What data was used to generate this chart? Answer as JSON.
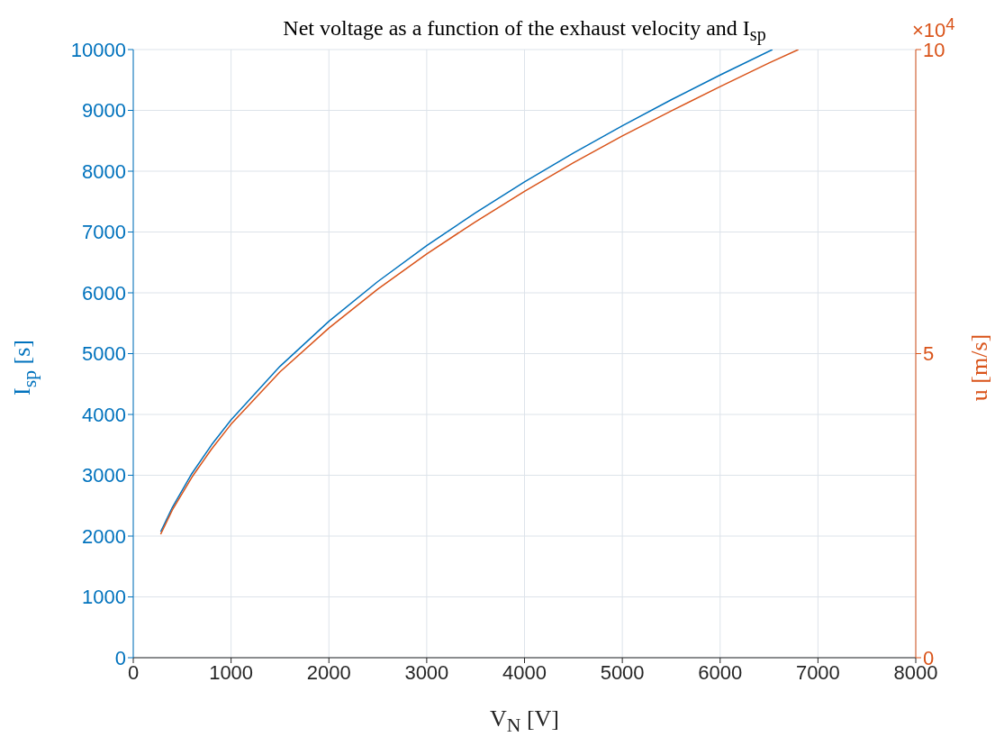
{
  "chart_data": {
    "type": "line",
    "title": "Net voltage as a function of the exhaust velocity and I$_{sp}$",
    "xlabel": "V$_{N}$ [V]",
    "ylabel": "I$_{sp}$ [s]",
    "y2label": "u [m/s]",
    "annotations": [
      "×10$^{4}$"
    ],
    "xlim": [
      0,
      8000
    ],
    "xticks": [
      0,
      1000,
      2000,
      3000,
      4000,
      5000,
      6000,
      7000,
      8000
    ],
    "ylim": [
      0,
      10000
    ],
    "yticks": [
      0,
      1000,
      2000,
      3000,
      4000,
      5000,
      6000,
      7000,
      8000,
      9000,
      10000
    ],
    "y2lim": [
      0,
      10
    ],
    "y2ticks": [
      0,
      5,
      10
    ],
    "grid": true,
    "series": [
      {
        "color": "#0072bd",
        "x": [
          280,
          400,
          600,
          800,
          1000,
          1500,
          2000,
          2500,
          3000,
          3500,
          4000,
          4500,
          5000,
          5500,
          6000,
          6535
        ],
        "values": [
          2070,
          2474,
          3030,
          3499,
          3912,
          4791,
          5532,
          6185,
          6775,
          7318,
          7823,
          8298,
          8747,
          9174,
          9582,
          10000
        ]
      },
      {
        "color": "#d95319",
        "axis": "y2",
        "x": [
          280,
          400,
          600,
          800,
          1000,
          1500,
          2000,
          2500,
          3000,
          3500,
          4000,
          4500,
          5000,
          5500,
          6000,
          6500,
          6800
        ],
        "values": [
          2.03,
          2.43,
          2.97,
          3.43,
          3.84,
          4.7,
          5.42,
          6.06,
          6.64,
          7.17,
          7.67,
          8.14,
          8.58,
          8.99,
          9.39,
          9.78,
          10
        ]
      }
    ]
  }
}
